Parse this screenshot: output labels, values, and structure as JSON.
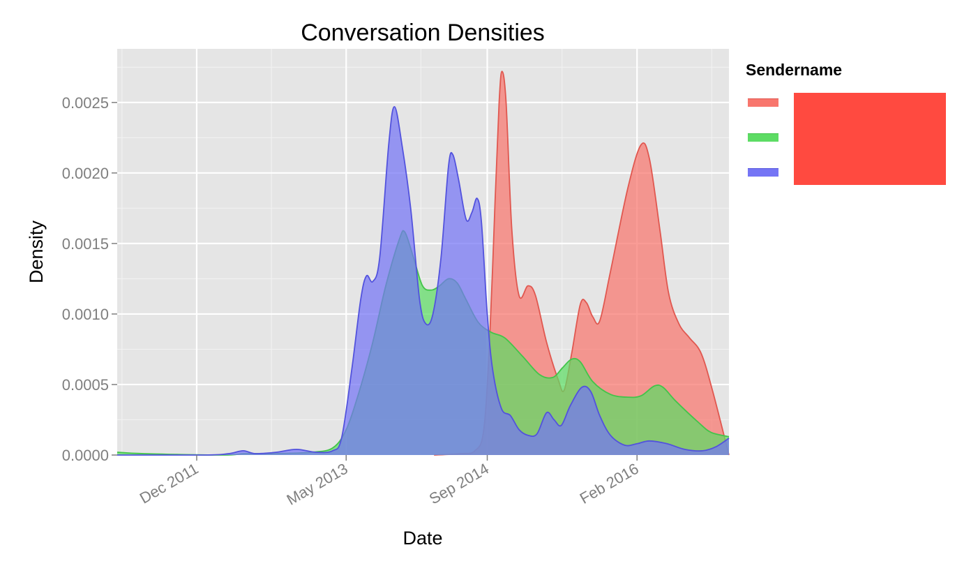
{
  "chart_data": {
    "type": "area",
    "title": "Conversation Densities",
    "xlabel": "Date",
    "ylabel": "Density",
    "x_ticks": [
      {
        "label": "Dec 2011",
        "date": "2011-12-01"
      },
      {
        "label": "May 2013",
        "date": "2013-05-01"
      },
      {
        "label": "Sep 2014",
        "date": "2014-09-01"
      },
      {
        "label": "Feb 2016",
        "date": "2016-02-01"
      }
    ],
    "y_ticks": [
      "0.0000",
      "0.0005",
      "0.0010",
      "0.0015",
      "0.0020",
      "0.0025"
    ],
    "xlim": [
      "2011-03-01",
      "2016-12-15"
    ],
    "ylim": [
      0,
      0.00288
    ],
    "grid": true,
    "legend": {
      "title": "Sendername",
      "position": "right"
    },
    "colors": {
      "panel": "#e5e5e5",
      "grid": "#ffffff",
      "redaction": "#ff4a40"
    },
    "series": [
      {
        "color": "#f8766d",
        "line": "#e0574f",
        "points": [
          [
            "2014-03-01",
            0.0
          ],
          [
            "2014-06-01",
            1e-05
          ],
          [
            "2014-07-20",
            3e-05
          ],
          [
            "2014-08-20",
            0.00018
          ],
          [
            "2014-09-10",
            0.00085
          ],
          [
            "2014-09-28",
            0.0018
          ],
          [
            "2014-10-12",
            0.0025
          ],
          [
            "2014-10-22",
            0.00272
          ],
          [
            "2014-11-05",
            0.0025
          ],
          [
            "2014-11-25",
            0.0016
          ],
          [
            "2014-12-20",
            0.00113
          ],
          [
            "2015-01-20",
            0.0012
          ],
          [
            "2015-02-15",
            0.00113
          ],
          [
            "2015-03-25",
            0.0008
          ],
          [
            "2015-05-05",
            0.00053
          ],
          [
            "2015-05-25",
            0.00046
          ],
          [
            "2015-06-20",
            0.00072
          ],
          [
            "2015-07-20",
            0.00107
          ],
          [
            "2015-08-10",
            0.00108
          ],
          [
            "2015-09-01",
            0.00098
          ],
          [
            "2015-09-25",
            0.00095
          ],
          [
            "2015-11-01",
            0.0013
          ],
          [
            "2016-01-01",
            0.0019
          ],
          [
            "2016-02-15",
            0.0022
          ],
          [
            "2016-03-15",
            0.0021
          ],
          [
            "2016-04-20",
            0.0016
          ],
          [
            "2016-05-20",
            0.00115
          ],
          [
            "2016-06-25",
            0.00093
          ],
          [
            "2016-08-01",
            0.00083
          ],
          [
            "2016-09-10",
            0.00072
          ],
          [
            "2016-10-20",
            0.00045
          ],
          [
            "2016-12-15",
            0.0
          ]
        ]
      },
      {
        "color": "#5ddc64",
        "line": "#42c449",
        "points": [
          [
            "2011-03-01",
            2e-05
          ],
          [
            "2011-06-01",
            1e-05
          ],
          [
            "2012-03-01",
            0.0
          ],
          [
            "2012-05-15",
            1e-05
          ],
          [
            "2012-09-01",
            1e-05
          ],
          [
            "2013-01-01",
            2e-05
          ],
          [
            "2013-03-15",
            5e-05
          ],
          [
            "2013-05-01",
            0.00018
          ],
          [
            "2013-06-15",
            0.00045
          ],
          [
            "2013-08-01",
            0.0008
          ],
          [
            "2013-09-15",
            0.0012
          ],
          [
            "2013-11-01",
            0.00153
          ],
          [
            "2013-11-20",
            0.00158
          ],
          [
            "2013-12-20",
            0.0014
          ],
          [
            "2014-01-20",
            0.0012
          ],
          [
            "2014-02-20",
            0.00117
          ],
          [
            "2014-03-20",
            0.0012
          ],
          [
            "2014-04-20",
            0.00125
          ],
          [
            "2014-05-20",
            0.00122
          ],
          [
            "2014-06-20",
            0.0011
          ],
          [
            "2014-08-01",
            0.00094
          ],
          [
            "2014-09-15",
            0.00087
          ],
          [
            "2014-11-01",
            0.00083
          ],
          [
            "2015-01-01",
            0.0007
          ],
          [
            "2015-03-01",
            0.00057
          ],
          [
            "2015-04-15",
            0.00055
          ],
          [
            "2015-05-20",
            0.00062
          ],
          [
            "2015-06-20",
            0.00068
          ],
          [
            "2015-07-20",
            0.00066
          ],
          [
            "2015-09-01",
            0.00052
          ],
          [
            "2015-11-01",
            0.00043
          ],
          [
            "2016-01-01",
            0.00041
          ],
          [
            "2016-02-15",
            0.00042
          ],
          [
            "2016-04-01",
            0.00049
          ],
          [
            "2016-05-01",
            0.00048
          ],
          [
            "2016-06-15",
            0.00038
          ],
          [
            "2016-09-01",
            0.00023
          ],
          [
            "2016-10-15",
            0.00016
          ],
          [
            "2016-12-15",
            0.00013
          ]
        ]
      },
      {
        "color": "#7575f5",
        "line": "#5252dd",
        "points": [
          [
            "2011-03-01",
            0.0
          ],
          [
            "2012-01-01",
            0.0
          ],
          [
            "2012-03-20",
            1e-05
          ],
          [
            "2012-05-10",
            3e-05
          ],
          [
            "2012-06-20",
            1e-05
          ],
          [
            "2012-09-01",
            2e-05
          ],
          [
            "2012-11-10",
            4e-05
          ],
          [
            "2013-01-15",
            2e-05
          ],
          [
            "2013-03-15",
            3e-05
          ],
          [
            "2013-04-15",
            0.00012
          ],
          [
            "2013-05-20",
            0.0006
          ],
          [
            "2013-06-20",
            0.0011
          ],
          [
            "2013-07-10",
            0.00127
          ],
          [
            "2013-08-01",
            0.00123
          ],
          [
            "2013-08-25",
            0.0014
          ],
          [
            "2013-09-25",
            0.0022
          ],
          [
            "2013-10-15",
            0.00247
          ],
          [
            "2013-11-10",
            0.0022
          ],
          [
            "2013-12-10",
            0.00175
          ],
          [
            "2014-01-10",
            0.0011
          ],
          [
            "2014-02-01",
            0.00093
          ],
          [
            "2014-02-25",
            0.001
          ],
          [
            "2014-03-25",
            0.0014
          ],
          [
            "2014-04-20",
            0.00205
          ],
          [
            "2014-05-05",
            0.00213
          ],
          [
            "2014-05-25",
            0.00195
          ],
          [
            "2014-06-20",
            0.00167
          ],
          [
            "2014-07-10",
            0.00172
          ],
          [
            "2014-07-28",
            0.00182
          ],
          [
            "2014-08-12",
            0.00165
          ],
          [
            "2014-09-01",
            0.001
          ],
          [
            "2014-09-20",
            0.0006
          ],
          [
            "2014-10-20",
            0.00033
          ],
          [
            "2014-11-20",
            0.00028
          ],
          [
            "2014-12-20",
            0.00018
          ],
          [
            "2015-01-20",
            0.00014
          ],
          [
            "2015-02-20",
            0.00015
          ],
          [
            "2015-03-25",
            0.0003
          ],
          [
            "2015-04-20",
            0.00025
          ],
          [
            "2015-05-15",
            0.00021
          ],
          [
            "2015-06-15",
            0.00035
          ],
          [
            "2015-07-25",
            0.00048
          ],
          [
            "2015-08-25",
            0.00045
          ],
          [
            "2015-09-25",
            0.00028
          ],
          [
            "2015-11-01",
            0.00014
          ],
          [
            "2015-12-20",
            7e-05
          ],
          [
            "2016-02-01",
            8e-05
          ],
          [
            "2016-03-15",
            0.0001
          ],
          [
            "2016-05-15",
            8e-05
          ],
          [
            "2016-07-15",
            4e-05
          ],
          [
            "2016-09-15",
            3e-05
          ],
          [
            "2016-11-01",
            6e-05
          ],
          [
            "2016-12-15",
            0.00012
          ]
        ]
      }
    ]
  }
}
